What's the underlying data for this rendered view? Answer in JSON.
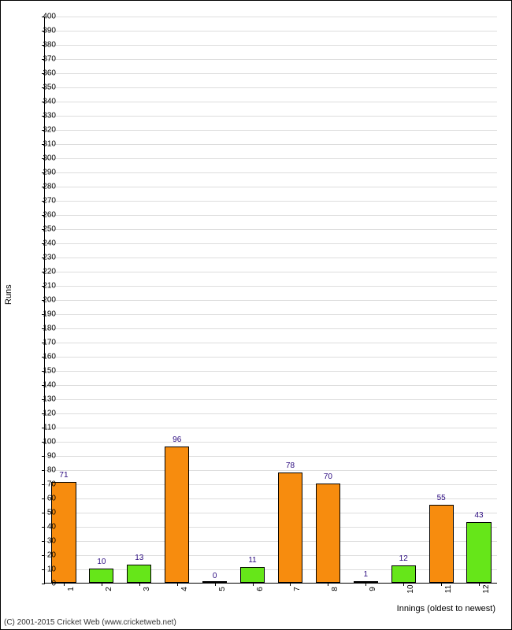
{
  "chart": {
    "type": "bar",
    "ylabel": "Runs",
    "xlabel": "Innings (oldest to newest)",
    "ylim": [
      0,
      400
    ],
    "ytick_step": 10,
    "background_color": "#ffffff",
    "grid_color": "#dddddd",
    "border_color": "#000000",
    "bar_width_ratio": 0.65,
    "label_color": "#29087e",
    "label_fontsize": 10,
    "tick_fontsize": 10,
    "axis_title_fontsize": 11,
    "categories": [
      "1",
      "2",
      "3",
      "4",
      "5",
      "6",
      "7",
      "8",
      "9",
      "10",
      "11",
      "12"
    ],
    "values": [
      71,
      10,
      13,
      96,
      0,
      11,
      78,
      70,
      1,
      12,
      55,
      43
    ],
    "bar_colors": [
      "#f78c0e",
      "#66e619",
      "#66e619",
      "#f78c0e",
      "#66e619",
      "#66e619",
      "#f78c0e",
      "#f78c0e",
      "#66e619",
      "#66e619",
      "#f78c0e",
      "#66e619"
    ],
    "bar_border_color": "#000000"
  },
  "copyright": "(C) 2001-2015 Cricket Web (www.cricketweb.net)"
}
